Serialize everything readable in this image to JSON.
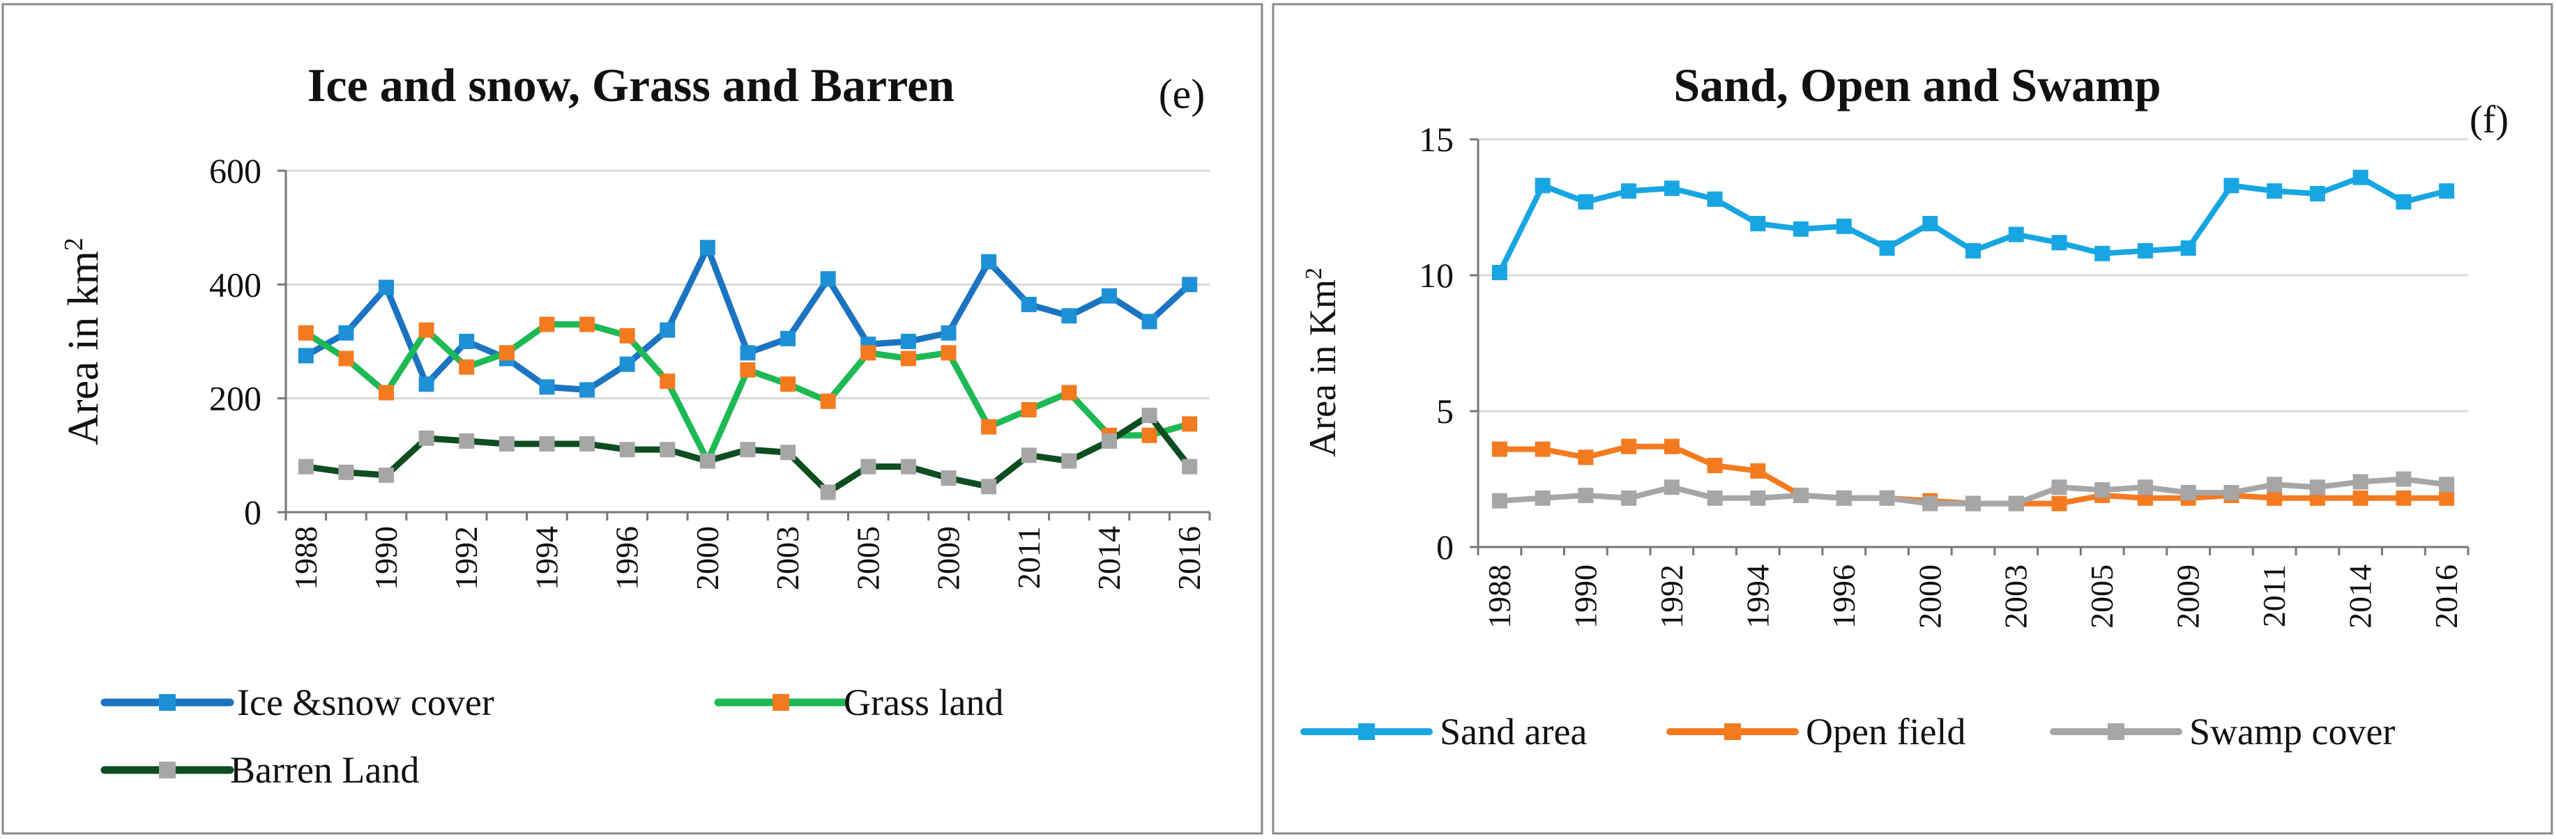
{
  "colors": {
    "ice": "#1a74c1",
    "grass": "#1db954",
    "barren": "#0d4d20",
    "sand": "#17a6e2",
    "open": "#f47a20",
    "swamp": "#a6a6a6",
    "grid": "#d9d9d9",
    "axis": "#777777",
    "text": "#111111",
    "panel_border": "#8a8a8a",
    "marker_orange": "#f47a20",
    "marker_gray": "#a6a6a6",
    "marker_blue": "#1e90d6"
  },
  "chart_data": [
    {
      "type": "line",
      "title": "Ice and snow, Grass and Barren",
      "panel_label": "(e)",
      "ylabel": "Area in km",
      "ylabel_sup": "2",
      "xlabel": "",
      "ylim": [
        0,
        600
      ],
      "yticks": [
        "0",
        "200",
        "400",
        "600"
      ],
      "categories": [
        "1988",
        "1989",
        "1990",
        "1991",
        "1992",
        "1993",
        "1994",
        "1995",
        "1996",
        "1997",
        "2000",
        "2002",
        "2003",
        "2004",
        "2005",
        "2007",
        "2009",
        "2010",
        "2011",
        "2013",
        "2014",
        "2015",
        "2016"
      ],
      "visible_tick_labels": [
        "1988",
        "1990",
        "1992",
        "1994",
        "1996",
        "2000",
        "2003",
        "2005",
        "2009",
        "2011",
        "2014",
        "2016"
      ],
      "series": [
        {
          "name": "Ice &snow cover",
          "values": [
            275,
            315,
            395,
            225,
            300,
            270,
            220,
            215,
            260,
            320,
            465,
            280,
            305,
            410,
            295,
            300,
            315,
            440,
            365,
            345,
            380,
            335,
            400
          ]
        },
        {
          "name": "Grass land",
          "values": [
            315,
            270,
            210,
            320,
            255,
            280,
            330,
            330,
            310,
            230,
            90,
            250,
            225,
            195,
            280,
            270,
            280,
            150,
            180,
            210,
            135,
            135,
            155
          ]
        },
        {
          "name": "Barren Land",
          "values": [
            80,
            70,
            65,
            130,
            125,
            120,
            120,
            120,
            110,
            110,
            90,
            110,
            105,
            35,
            80,
            80,
            60,
            45,
            100,
            90,
            125,
            170,
            80
          ]
        }
      ],
      "legend": [
        {
          "label": "Ice &snow cover",
          "line": "ice",
          "marker": "marker_blue"
        },
        {
          "label": "Grass land",
          "line": "grass",
          "marker": "marker_orange"
        },
        {
          "label": "Barren Land",
          "line": "barren",
          "marker": "marker_gray"
        }
      ]
    },
    {
      "type": "line",
      "title": "Sand, Open and Swamp",
      "panel_label": "(f)",
      "ylabel": "Area in Km",
      "ylabel_sup": "2",
      "xlabel": "",
      "ylim": [
        0,
        15
      ],
      "yticks": [
        "0",
        "5",
        "10",
        "15"
      ],
      "categories": [
        "1988",
        "1989",
        "1990",
        "1991",
        "1992",
        "1993",
        "1994",
        "1995",
        "1996",
        "1997",
        "2000",
        "2002",
        "2003",
        "2004",
        "2005",
        "2007",
        "2009",
        "2010",
        "2011",
        "2013",
        "2014",
        "2015",
        "2016"
      ],
      "visible_tick_labels": [
        "1988",
        "1990",
        "1992",
        "1994",
        "1996",
        "2000",
        "2003",
        "2005",
        "2009",
        "2011",
        "2014",
        "2016"
      ],
      "series": [
        {
          "name": "Sand area",
          "values": [
            10.1,
            13.3,
            12.7,
            13.1,
            13.2,
            12.8,
            11.9,
            11.7,
            11.8,
            11.0,
            11.9,
            10.9,
            11.5,
            11.2,
            10.8,
            10.9,
            11.0,
            13.3,
            13.1,
            13.0,
            13.6,
            12.7,
            13.1
          ]
        },
        {
          "name": "Open field",
          "values": [
            3.6,
            3.6,
            3.3,
            3.7,
            3.7,
            3.0,
            2.8,
            1.9,
            1.8,
            1.8,
            1.7,
            1.6,
            1.6,
            1.6,
            1.9,
            1.8,
            1.8,
            1.9,
            1.8,
            1.8,
            1.8,
            1.8,
            1.8
          ]
        },
        {
          "name": "Swamp cover",
          "values": [
            1.7,
            1.8,
            1.9,
            1.8,
            2.2,
            1.8,
            1.8,
            1.9,
            1.8,
            1.8,
            1.6,
            1.6,
            1.6,
            2.2,
            2.1,
            2.2,
            2.0,
            2.0,
            2.3,
            2.2,
            2.4,
            2.5,
            2.3
          ]
        }
      ],
      "legend": [
        {
          "label": "Sand area",
          "line": "sand",
          "marker": "sand"
        },
        {
          "label": "Open field",
          "line": "open",
          "marker": "open"
        },
        {
          "label": "Swamp cover",
          "line": "swamp",
          "marker": "swamp"
        }
      ]
    }
  ]
}
